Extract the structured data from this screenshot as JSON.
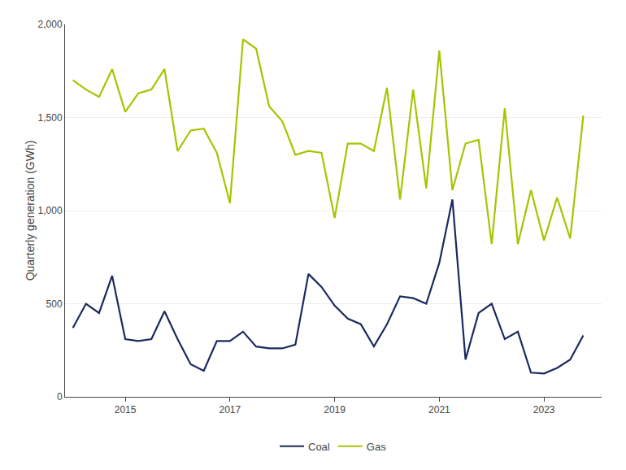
{
  "chart_data": {
    "type": "line",
    "ylabel": "Quarterly generation (GWh)",
    "x": [
      2014.0,
      2014.25,
      2014.5,
      2014.75,
      2015.0,
      2015.25,
      2015.5,
      2015.75,
      2016.0,
      2016.25,
      2016.5,
      2016.75,
      2017.0,
      2017.25,
      2017.5,
      2017.75,
      2018.0,
      2018.25,
      2018.5,
      2018.75,
      2019.0,
      2019.25,
      2019.5,
      2019.75,
      2020.0,
      2020.25,
      2020.5,
      2020.75,
      2021.0,
      2021.25,
      2021.5,
      2021.75,
      2022.0,
      2022.25,
      2022.5,
      2022.75,
      2023.0,
      2023.25,
      2023.5,
      2023.75
    ],
    "series": [
      {
        "name": "Coal",
        "color": "#1b2a5e",
        "values": [
          370,
          500,
          450,
          650,
          310,
          300,
          310,
          460,
          310,
          175,
          140,
          300,
          300,
          350,
          270,
          260,
          260,
          280,
          660,
          590,
          490,
          420,
          390,
          270,
          390,
          540,
          530,
          500,
          720,
          1060,
          200,
          450,
          500,
          310,
          350,
          130,
          125,
          155,
          200,
          330
        ]
      },
      {
        "name": "Gas",
        "color": "#a8c400",
        "values": [
          1700,
          1650,
          1610,
          1760,
          1530,
          1630,
          1650,
          1760,
          1320,
          1430,
          1440,
          1310,
          1040,
          1920,
          1870,
          1560,
          1480,
          1300,
          1320,
          1310,
          960,
          1360,
          1360,
          1320,
          1660,
          1060,
          1650,
          1120,
          1860,
          1110,
          1360,
          1380,
          820,
          1550,
          820,
          1110,
          840,
          1070,
          850,
          1510
        ]
      }
    ],
    "xlim": [
      2013.85,
      2024.1
    ],
    "xticks": [
      2015,
      2017,
      2019,
      2021,
      2023
    ],
    "ylim": [
      0,
      2000
    ],
    "yticks": [
      0,
      500,
      {
        "value": 1000,
        "label": "1,000"
      },
      {
        "value": 1500,
        "label": "1,500"
      },
      {
        "value": 2000,
        "label": "2,000"
      }
    ],
    "grid": true,
    "legend": "bottom"
  }
}
